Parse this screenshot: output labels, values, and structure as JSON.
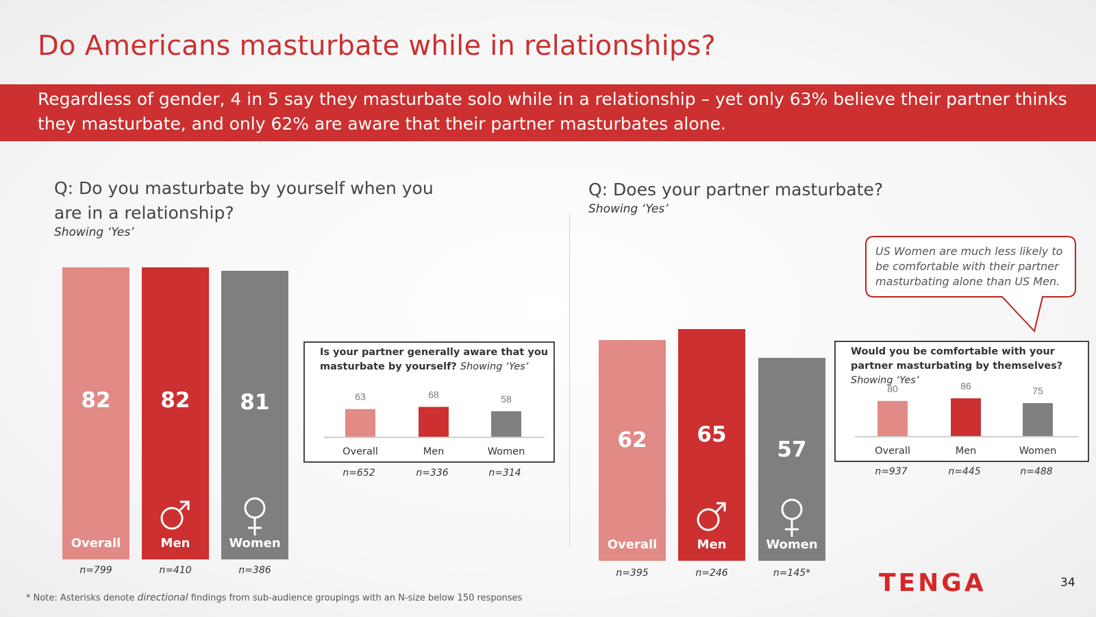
{
  "slide": {
    "title": "Do Americans masturbate while in relationships?",
    "banner": "Regardless of gender, 4 in 5 say they masturbate solo while in a relationship – yet only 63% believe their partner thinks they masturbate, and only 62% are aware that their partner masturbates alone.",
    "footnote_prefix": "* Note: Asterisks denote ",
    "footnote_emph": "directional",
    "footnote_suffix": " findings from sub-audience groupings with an N-size below 150 responses",
    "logo": "TENGA",
    "page_number": "34"
  },
  "colors": {
    "overall": "#e28a86",
    "men": "#cc3030",
    "women": "#7f7f7f",
    "accent": "#cc3030"
  },
  "chart_data": [
    {
      "type": "bar",
      "question": "Q:  Do you masturbate by yourself when you are in a relationship?",
      "subtitle": "Showing ‘Yes’",
      "categories": [
        "Overall",
        "Men",
        "Women"
      ],
      "values": [
        82,
        82,
        81
      ],
      "n_labels": [
        "n=799",
        "n=410",
        "n=386"
      ]
    },
    {
      "type": "bar",
      "question_main": "Is your partner generally aware that you masturbate by yourself?",
      "question_tag": "Showing ‘Yes’",
      "categories": [
        "Overall",
        "Men",
        "Women"
      ],
      "values": [
        63,
        68,
        58
      ],
      "n_labels": [
        "n=652",
        "n=336",
        "n=314"
      ]
    },
    {
      "type": "bar",
      "question": "Q:  Does your partner masturbate?",
      "subtitle": "Showing ‘Yes’",
      "categories": [
        "Overall",
        "Men",
        "Women"
      ],
      "values": [
        62,
        65,
        57
      ],
      "n_labels": [
        "n=395",
        "n=246",
        "n=145*"
      ]
    },
    {
      "type": "bar",
      "question_main": "Would you be comfortable with your partner masturbating by themselves?",
      "question_tag": "Showing ‘Yes’",
      "callout": "US Women are much less likely to be comfortable with their partner masturbating alone than US Men.",
      "categories": [
        "Overall",
        "Men",
        "Women"
      ],
      "values": [
        80,
        86,
        75
      ],
      "n_labels": [
        "n=937",
        "n=445",
        "n=488"
      ]
    }
  ]
}
